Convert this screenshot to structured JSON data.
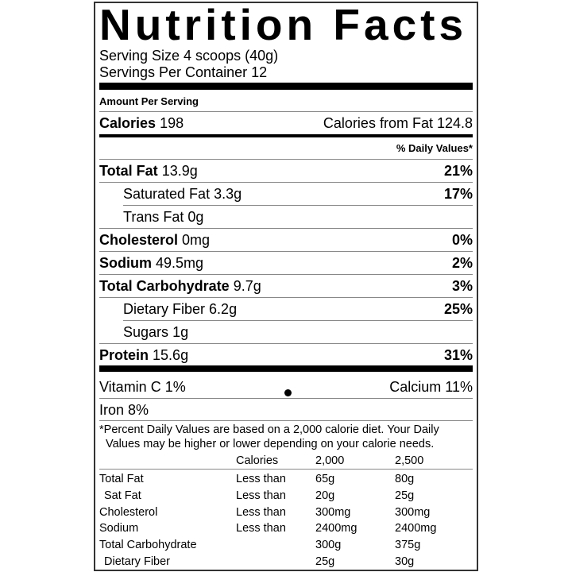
{
  "title": "Nutrition Facts",
  "serving_size": "Serving Size 4 scoops (40g)",
  "servings_per_container": "Servings Per Container 12",
  "amount_per_serving": "Amount Per Serving",
  "calories": {
    "label": "Calories",
    "value": "198",
    "from_fat": "Calories from Fat 124.8"
  },
  "daily_values_header": "% Daily Values*",
  "nutrients": [
    {
      "label": "Total Fat",
      "amount": "13.9g",
      "dv": "21%"
    },
    {
      "label": "Saturated Fat",
      "amount": "3.3g",
      "dv": "17%"
    },
    {
      "label": "Trans Fat",
      "amount": "0g",
      "dv": ""
    },
    {
      "label": "Cholesterol",
      "amount": "0mg",
      "dv": "0%"
    },
    {
      "label": "Sodium",
      "amount": "49.5mg",
      "dv": "2%"
    },
    {
      "label": "Total Carbohydrate",
      "amount": "9.7g",
      "dv": "3%"
    },
    {
      "label": "Dietary Fiber",
      "amount": "6.2g",
      "dv": "25%"
    },
    {
      "label": "Sugars",
      "amount": "1g",
      "dv": ""
    },
    {
      "label": "Protein",
      "amount": "15.6g",
      "dv": "31%"
    }
  ],
  "vitamins": {
    "vitamin_c": "Vitamin C 1%",
    "calcium": "Calcium 11%",
    "iron": "Iron 8%"
  },
  "footnote": {
    "line1": "*Percent Daily Values are based on a 2,000 calorie diet. Your Daily",
    "line2": "Values may be higher or lower depending on your calorie needs."
  },
  "table": {
    "header": [
      "",
      "Calories",
      "2,000",
      "2,500"
    ],
    "rows": [
      [
        "Total Fat",
        "Less than",
        "65g",
        "80g"
      ],
      [
        " Sat Fat",
        "Less than",
        "20g",
        "25g"
      ],
      [
        "Cholesterol",
        "Less than",
        "300mg",
        "300mg"
      ],
      [
        "Sodium",
        "Less than",
        "2400mg",
        "2400mg"
      ],
      [
        "Total Carbohydrate",
        "",
        "300g",
        "375g"
      ],
      [
        " Dietary Fiber",
        "",
        "25g",
        "30g"
      ]
    ]
  }
}
